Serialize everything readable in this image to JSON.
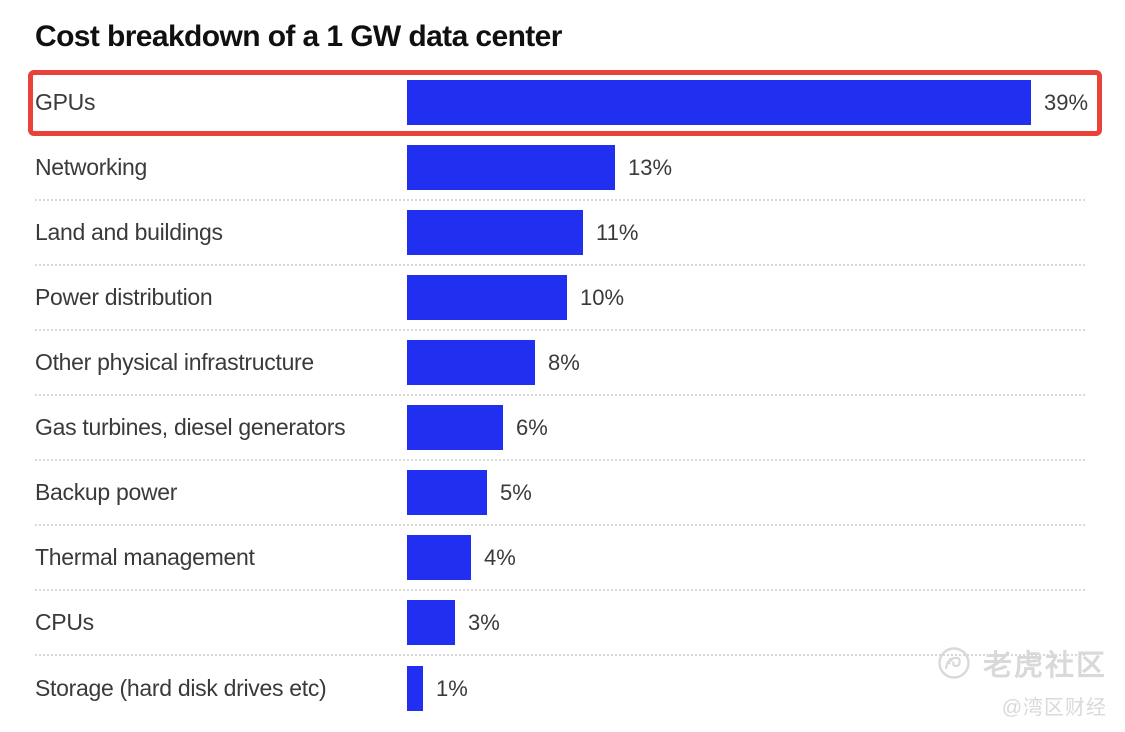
{
  "title": "Cost breakdown of a 1 GW data center",
  "chart_data": {
    "type": "bar",
    "orientation": "horizontal",
    "title": "Cost breakdown of a 1 GW data center",
    "categories": [
      "GPUs",
      "Networking",
      "Land and buildings",
      "Power distribution",
      "Other physical infrastructure",
      "Gas turbines, diesel generators",
      "Backup power",
      "Thermal management",
      "CPUs",
      "Storage (hard disk drives etc)"
    ],
    "values": [
      39,
      13,
      11,
      10,
      8,
      6,
      5,
      4,
      3,
      1
    ],
    "value_labels": [
      "39%",
      "13%",
      "11%",
      "10%",
      "8%",
      "6%",
      "5%",
      "4%",
      "3%",
      "1%"
    ],
    "unit": "%",
    "xlim": [
      0,
      40
    ],
    "grid": "dotted row separators, no axis",
    "legend": "none",
    "bar_color": "#2130f0",
    "highlight": {
      "category": "GPUs",
      "style": "red outline box around entire row",
      "color": "#e8423a"
    }
  },
  "watermark": {
    "community": "老虎社区",
    "handle": "@湾区财经",
    "icon": "tiger-logo",
    "color": "#d9d9d9"
  },
  "colors": {
    "background": "#ffffff",
    "bar": "#2130f0",
    "highlight_border": "#e8423a",
    "title_text": "#101010",
    "label_text": "#3a3a3a",
    "separator": "#d8d8d8"
  }
}
